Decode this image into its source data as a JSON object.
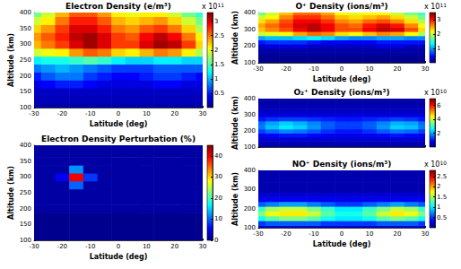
{
  "chart_data": [
    {
      "type": "heatmap",
      "title": "Electron Density (e/m³)",
      "xlabel": "Latitude (deg)",
      "ylabel": "Altitude (km)",
      "x": [
        -30,
        -25,
        -20,
        -15,
        -10,
        -5,
        0,
        5,
        10,
        15,
        20,
        25,
        30
      ],
      "y": [
        100,
        125,
        150,
        175,
        200,
        225,
        250,
        275,
        300,
        325,
        350,
        375,
        400
      ],
      "z": [
        [
          0.1,
          0.1,
          0.1,
          0.1,
          0.1,
          0.1,
          0.1,
          0.1,
          0.1,
          0.1,
          0.1,
          0.1,
          0.1
        ],
        [
          0.15,
          0.15,
          0.15,
          0.15,
          0.15,
          0.15,
          0.15,
          0.15,
          0.15,
          0.15,
          0.15,
          0.15,
          0.15
        ],
        [
          0.2,
          0.2,
          0.2,
          0.2,
          0.2,
          0.2,
          0.2,
          0.2,
          0.2,
          0.2,
          0.2,
          0.2,
          0.2
        ],
        [
          0.3,
          0.4,
          0.5,
          0.5,
          0.4,
          0.3,
          0.3,
          0.3,
          0.3,
          0.4,
          0.4,
          0.3,
          0.3
        ],
        [
          0.5,
          0.7,
          0.8,
          0.8,
          0.6,
          0.5,
          0.4,
          0.4,
          0.5,
          0.6,
          0.6,
          0.5,
          0.4
        ],
        [
          0.8,
          0.9,
          1.0,
          0.9,
          0.8,
          0.7,
          0.6,
          0.6,
          0.6,
          0.7,
          0.7,
          0.7,
          0.7
        ],
        [
          1.2,
          1.3,
          1.3,
          1.4,
          1.5,
          1.4,
          1.2,
          1.1,
          1.1,
          1.2,
          1.2,
          1.1,
          1.1
        ],
        [
          1.9,
          2.0,
          2.1,
          2.4,
          2.6,
          2.5,
          2.2,
          2.1,
          2.3,
          2.5,
          2.4,
          2.1,
          1.8
        ],
        [
          2.3,
          2.5,
          2.7,
          3.0,
          3.2,
          3.0,
          2.7,
          2.7,
          3.0,
          3.2,
          3.1,
          2.7,
          2.2
        ],
        [
          2.4,
          2.6,
          2.8,
          3.1,
          3.2,
          3.0,
          2.7,
          2.6,
          2.9,
          3.1,
          2.9,
          2.5,
          2.1
        ],
        [
          2.2,
          2.4,
          2.7,
          3.0,
          3.0,
          2.8,
          2.5,
          2.4,
          2.6,
          2.7,
          2.5,
          2.2,
          1.8
        ],
        [
          1.9,
          2.1,
          2.5,
          2.8,
          2.8,
          2.6,
          2.3,
          2.2,
          2.3,
          2.4,
          2.2,
          1.9,
          1.6
        ],
        [
          1.6,
          1.9,
          2.3,
          2.6,
          2.6,
          2.4,
          2.1,
          2.0,
          2.1,
          2.1,
          1.9,
          1.6,
          1.4
        ]
      ],
      "xlim": [
        -30,
        30
      ],
      "ylim": [
        100,
        400
      ],
      "xticks": [
        -30,
        -20,
        -10,
        0,
        10,
        20,
        30
      ],
      "yticks": [
        100,
        150,
        200,
        250,
        300,
        350,
        400
      ],
      "colorbar": {
        "range": [
          0,
          3.3
        ],
        "ticks": [
          0.5,
          1,
          1.5,
          2,
          2.5,
          3
        ],
        "multiplier": "x 10",
        "exponent": "11"
      }
    },
    {
      "type": "heatmap",
      "title": "Electron Density Perturbation (%)",
      "xlabel": "Latitude (deg)",
      "ylabel": "Altitude (km)",
      "x": [
        -30,
        -25,
        -20,
        -15,
        -10,
        -5,
        0,
        5,
        10,
        15,
        20,
        25,
        30
      ],
      "y": [
        100,
        125,
        150,
        175,
        200,
        225,
        250,
        275,
        300,
        325,
        350,
        375,
        400
      ],
      "z": [
        [
          0,
          0,
          0,
          0,
          0,
          0,
          0,
          0,
          0,
          0,
          0,
          0,
          0
        ],
        [
          0,
          0,
          0,
          0,
          0,
          0,
          0,
          0,
          0,
          0,
          0,
          0,
          0
        ],
        [
          0,
          0,
          0,
          0,
          0,
          0,
          0,
          0,
          0,
          0,
          0,
          0,
          0
        ],
        [
          0,
          0,
          0,
          0,
          0,
          0,
          0,
          0,
          0,
          0,
          0,
          0,
          0
        ],
        [
          1,
          1,
          1,
          1,
          1,
          1,
          1,
          1,
          1,
          1,
          1,
          1,
          1
        ],
        [
          1,
          1,
          1,
          1,
          1,
          1,
          1,
          1,
          1,
          1,
          1,
          1,
          1
        ],
        [
          1,
          1,
          1,
          1,
          1,
          1,
          1,
          1,
          1,
          1,
          1,
          1,
          1
        ],
        [
          1,
          1,
          1,
          10,
          1,
          1,
          1,
          1,
          1,
          1,
          1,
          1,
          1
        ],
        [
          1,
          1,
          5,
          40,
          8,
          1,
          1,
          1,
          1,
          1,
          1,
          1,
          1
        ],
        [
          1,
          1,
          1,
          12,
          1,
          1,
          1,
          1,
          1,
          1,
          1,
          1,
          1
        ],
        [
          1,
          1,
          1,
          1,
          1,
          1,
          1,
          1,
          1,
          1,
          1,
          1,
          1
        ],
        [
          1,
          1,
          1,
          1,
          1,
          1,
          1,
          1,
          1,
          1,
          1,
          1,
          1
        ],
        [
          1,
          1,
          1,
          1,
          1,
          1,
          1,
          1,
          1,
          1,
          1,
          1,
          1
        ]
      ],
      "xlim": [
        -30,
        30
      ],
      "ylim": [
        100,
        400
      ],
      "xticks": [
        -30,
        -20,
        -10,
        0,
        10,
        20,
        30
      ],
      "yticks": [
        100,
        150,
        200,
        250,
        300,
        350,
        400
      ],
      "colorbar": {
        "range": [
          0,
          45
        ],
        "ticks": [
          0,
          10,
          20,
          30,
          40
        ]
      }
    },
    {
      "type": "heatmap",
      "title": "O⁺ Density (ions/m³)",
      "xlabel": "Latitude (deg)",
      "ylabel": "Altitude (km)",
      "x": [
        -30,
        -25,
        -20,
        -15,
        -10,
        -5,
        0,
        5,
        10,
        15,
        20,
        25,
        30
      ],
      "y": [
        100,
        125,
        150,
        175,
        200,
        225,
        250,
        275,
        300,
        325,
        350,
        375,
        400
      ],
      "z": [
        [
          0,
          0,
          0,
          0,
          0,
          0,
          0,
          0,
          0,
          0,
          0,
          0,
          0
        ],
        [
          0,
          0,
          0,
          0,
          0,
          0,
          0,
          0,
          0,
          0,
          0,
          0,
          0
        ],
        [
          0.05,
          0.05,
          0.05,
          0.05,
          0.05,
          0.05,
          0.05,
          0.05,
          0.05,
          0.05,
          0.05,
          0.05,
          0.05
        ],
        [
          0.1,
          0.1,
          0.1,
          0.1,
          0.1,
          0.1,
          0.1,
          0.1,
          0.1,
          0.1,
          0.1,
          0.1,
          0.1
        ],
        [
          0.2,
          0.3,
          0.3,
          0.3,
          0.2,
          0.2,
          0.2,
          0.2,
          0.2,
          0.3,
          0.3,
          0.2,
          0.2
        ],
        [
          0.5,
          0.6,
          0.6,
          0.6,
          0.5,
          0.4,
          0.4,
          0.4,
          0.4,
          0.5,
          0.5,
          0.5,
          0.5
        ],
        [
          1.0,
          1.1,
          1.1,
          1.2,
          1.3,
          1.2,
          1.0,
          0.9,
          0.9,
          1.0,
          1.0,
          0.9,
          0.9
        ],
        [
          2.0,
          2.1,
          2.2,
          2.5,
          2.7,
          2.6,
          2.3,
          2.2,
          2.4,
          2.6,
          2.5,
          2.2,
          1.9
        ],
        [
          2.4,
          2.6,
          2.8,
          3.1,
          3.3,
          3.1,
          2.8,
          2.8,
          3.1,
          3.3,
          3.2,
          2.8,
          2.3
        ],
        [
          2.5,
          2.7,
          2.9,
          3.2,
          3.3,
          3.1,
          2.8,
          2.7,
          3.0,
          3.2,
          3.0,
          2.6,
          2.2
        ],
        [
          2.3,
          2.5,
          2.8,
          3.1,
          3.1,
          2.9,
          2.6,
          2.5,
          2.7,
          2.8,
          2.6,
          2.3,
          1.9
        ],
        [
          2.0,
          2.2,
          2.6,
          2.9,
          2.9,
          2.7,
          2.4,
          2.3,
          2.4,
          2.5,
          2.3,
          2.0,
          1.7
        ],
        [
          1.7,
          2.0,
          2.4,
          2.7,
          2.7,
          2.5,
          2.2,
          2.1,
          2.2,
          2.2,
          2.0,
          1.7,
          1.5
        ]
      ],
      "xlim": [
        -30,
        30
      ],
      "ylim": [
        100,
        400
      ],
      "xticks": [
        -30,
        -20,
        -10,
        0,
        10,
        20,
        30
      ],
      "yticks": [
        100,
        200,
        300,
        400
      ],
      "colorbar": {
        "range": [
          0,
          3.5
        ],
        "ticks": [
          1,
          2,
          3
        ],
        "multiplier": "x 10",
        "exponent": "11"
      }
    },
    {
      "type": "heatmap",
      "title": "O₂⁺ Density (ions/m³)",
      "ylabel": "Altitude (km)",
      "tick_labels": "y",
      "x": [
        -30,
        -25,
        -20,
        -15,
        -10,
        -5,
        0,
        5,
        10,
        15,
        20,
        25,
        30
      ],
      "y": [
        100,
        125,
        150,
        175,
        200,
        225,
        250,
        275,
        300,
        325,
        350,
        375,
        400
      ],
      "z": [
        [
          0.2,
          0.2,
          0.2,
          0.2,
          0.2,
          0.2,
          0.2,
          0.2,
          0.2,
          0.2,
          0.2,
          0.2,
          0.2
        ],
        [
          0.3,
          0.3,
          0.3,
          0.3,
          0.3,
          0.3,
          0.3,
          0.3,
          0.3,
          0.3,
          0.3,
          0.3,
          0.3
        ],
        [
          0.5,
          0.5,
          0.5,
          0.5,
          0.5,
          0.5,
          0.5,
          0.5,
          0.5,
          0.5,
          0.5,
          0.5,
          0.5
        ],
        [
          0.8,
          0.9,
          1.0,
          1.0,
          0.9,
          0.8,
          0.7,
          0.7,
          0.8,
          0.9,
          1.0,
          0.9,
          0.8
        ],
        [
          1.3,
          1.6,
          1.8,
          1.7,
          1.5,
          1.2,
          1.0,
          1.0,
          1.2,
          1.5,
          1.7,
          1.6,
          1.3
        ],
        [
          1.7,
          2.2,
          2.5,
          2.3,
          1.9,
          1.5,
          1.3,
          1.3,
          1.5,
          1.9,
          2.3,
          2.2,
          1.7
        ],
        [
          1.6,
          2.0,
          2.3,
          2.1,
          1.8,
          1.5,
          1.3,
          1.3,
          1.5,
          1.8,
          2.1,
          2.0,
          1.6
        ],
        [
          1.0,
          1.2,
          1.3,
          1.3,
          1.2,
          1.1,
          1.0,
          1.0,
          1.1,
          1.2,
          1.3,
          1.2,
          1.0
        ],
        [
          0.6,
          0.6,
          0.6,
          0.6,
          0.6,
          0.6,
          0.6,
          0.6,
          0.6,
          0.6,
          0.6,
          0.6,
          0.6
        ],
        [
          0.4,
          0.4,
          0.4,
          0.4,
          0.4,
          0.4,
          0.4,
          0.4,
          0.4,
          0.4,
          0.4,
          0.4,
          0.4
        ],
        [
          0.3,
          0.3,
          0.3,
          0.3,
          0.3,
          0.3,
          0.3,
          0.3,
          0.3,
          0.3,
          0.3,
          0.3,
          0.3
        ],
        [
          0.2,
          0.2,
          0.2,
          0.2,
          0.2,
          0.2,
          0.2,
          0.2,
          0.2,
          0.2,
          0.2,
          0.2,
          0.2
        ],
        [
          0.2,
          0.2,
          0.2,
          0.2,
          0.2,
          0.2,
          0.2,
          0.2,
          0.2,
          0.2,
          0.2,
          0.2,
          0.2
        ]
      ],
      "xlim": [
        -30,
        30
      ],
      "ylim": [
        100,
        400
      ],
      "xticks": [
        -30,
        -20,
        -10,
        0,
        10,
        20,
        30
      ],
      "yticks": [
        100,
        200,
        300,
        400
      ],
      "colorbar": {
        "range": [
          0,
          7
        ],
        "ticks": [
          2,
          4,
          6
        ],
        "multiplier": "x 10",
        "exponent": "10"
      }
    },
    {
      "type": "heatmap",
      "title": "NO⁺ Density (ions/m³)",
      "xlabel": "Latitude (deg)",
      "ylabel": "Altitude (km)",
      "x": [
        -30,
        -25,
        -20,
        -15,
        -10,
        -5,
        0,
        5,
        10,
        15,
        20,
        25,
        30
      ],
      "y": [
        100,
        125,
        150,
        175,
        200,
        225,
        250,
        275,
        300,
        325,
        350,
        375,
        400
      ],
      "z": [
        [
          0.2,
          0.2,
          0.2,
          0.2,
          0.2,
          0.2,
          0.2,
          0.2,
          0.2,
          0.2,
          0.2,
          0.2,
          0.2
        ],
        [
          0.5,
          0.6,
          0.6,
          0.6,
          0.6,
          0.5,
          0.5,
          0.5,
          0.5,
          0.6,
          0.6,
          0.6,
          0.5
        ],
        [
          1.1,
          1.3,
          1.4,
          1.4,
          1.3,
          1.1,
          1.0,
          1.0,
          1.1,
          1.3,
          1.4,
          1.3,
          1.1
        ],
        [
          1.4,
          1.7,
          1.8,
          1.8,
          1.6,
          1.3,
          1.1,
          1.1,
          1.3,
          1.6,
          1.8,
          1.7,
          1.4
        ],
        [
          1.2,
          1.5,
          1.6,
          1.6,
          1.4,
          1.2,
          1.0,
          1.0,
          1.2,
          1.4,
          1.6,
          1.5,
          1.2
        ],
        [
          0.6,
          0.7,
          0.8,
          0.8,
          0.7,
          0.6,
          0.5,
          0.5,
          0.6,
          0.7,
          0.8,
          0.7,
          0.6
        ],
        [
          0.3,
          0.3,
          0.3,
          0.3,
          0.3,
          0.3,
          0.3,
          0.3,
          0.3,
          0.3,
          0.3,
          0.3,
          0.3
        ],
        [
          0.2,
          0.2,
          0.2,
          0.2,
          0.2,
          0.2,
          0.2,
          0.2,
          0.2,
          0.2,
          0.2,
          0.2,
          0.2
        ],
        [
          0.1,
          0.1,
          0.1,
          0.1,
          0.1,
          0.1,
          0.1,
          0.1,
          0.1,
          0.1,
          0.1,
          0.1,
          0.1
        ],
        [
          0.1,
          0.1,
          0.1,
          0.1,
          0.1,
          0.1,
          0.1,
          0.1,
          0.1,
          0.1,
          0.1,
          0.1,
          0.1
        ],
        [
          0.1,
          0.1,
          0.1,
          0.1,
          0.1,
          0.1,
          0.1,
          0.1,
          0.1,
          0.1,
          0.1,
          0.1,
          0.1
        ],
        [
          0.1,
          0.1,
          0.1,
          0.1,
          0.1,
          0.1,
          0.1,
          0.1,
          0.1,
          0.1,
          0.1,
          0.1,
          0.1
        ],
        [
          0.1,
          0.1,
          0.1,
          0.1,
          0.1,
          0.1,
          0.1,
          0.1,
          0.1,
          0.1,
          0.1,
          0.1,
          0.1
        ]
      ],
      "xlim": [
        -30,
        30
      ],
      "ylim": [
        100,
        400
      ],
      "xticks": [
        -30,
        -20,
        -10,
        0,
        10,
        20,
        30
      ],
      "yticks": [
        100,
        200,
        300,
        400
      ],
      "colorbar": {
        "range": [
          0,
          2.8
        ],
        "ticks": [
          0.5,
          1,
          1.5,
          2,
          2.5
        ],
        "multiplier": "x 10",
        "exponent": "10"
      }
    }
  ]
}
